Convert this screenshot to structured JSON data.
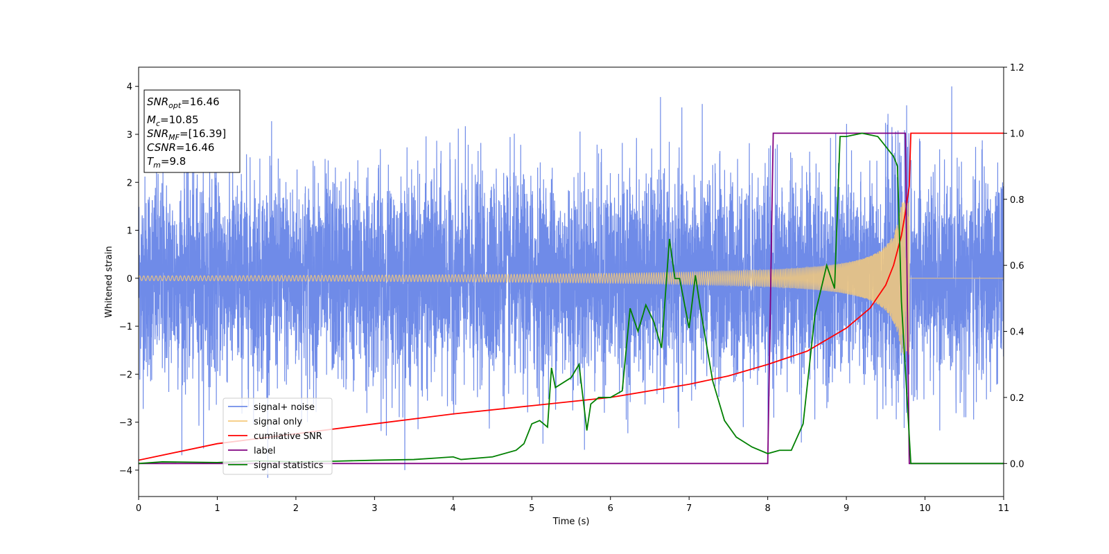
{
  "chart_data": {
    "type": "line",
    "title": "",
    "xlabel": "Time (s)",
    "ylabel": "Whitened strain",
    "ylabel_right": "",
    "xlim": [
      0,
      11
    ],
    "ylim": [
      -4.55,
      4.4
    ],
    "ylim_right": [
      -0.1,
      1.2
    ],
    "x_ticks": [
      "0",
      "1",
      "2",
      "3",
      "4",
      "5",
      "6",
      "7",
      "8",
      "9",
      "10",
      "11"
    ],
    "y_ticks": [
      "−4",
      "−3",
      "−2",
      "−1",
      "0",
      "1",
      "2",
      "3",
      "4"
    ],
    "y_right_ticks": [
      "0.0",
      "0.2",
      "0.4",
      "0.6",
      "0.8",
      "1.0",
      "1.2"
    ],
    "grid": false,
    "legend_position": "lower-left",
    "info_box": {
      "snr_opt": {
        "base": "SNR",
        "sub": "opt",
        "value": "=16.46"
      },
      "mc": {
        "base": "M",
        "sub": "c",
        "value": "=10.85"
      },
      "snr_mf": {
        "base": "SNR",
        "sub": "MF",
        "value": "=[16.39]"
      },
      "csnr": {
        "base": "CSNR",
        "value": "=16.46"
      },
      "tm": {
        "base": "T",
        "sub": "m",
        "value": "=9.8"
      }
    },
    "series": [
      {
        "name": "signal+ noise",
        "axis": "left",
        "color": "#6f8be8",
        "kind": "noise",
        "noise_std": 1.05,
        "noise_peak": 4.0,
        "x_range": [
          0,
          11
        ]
      },
      {
        "name": "signal only",
        "axis": "left",
        "color": "#f5c97a",
        "kind": "chirp",
        "merger_time": 9.8,
        "amp_start": 0.05,
        "amp_peak": 1.6
      },
      {
        "name": "cumilative SNR",
        "axis": "right",
        "color": "#ff0000",
        "x": [
          0,
          1,
          2,
          3,
          4,
          5,
          6,
          7,
          7.5,
          8,
          8.5,
          9,
          9.3,
          9.5,
          9.6,
          9.7,
          9.75,
          9.8,
          9.82,
          11
        ],
        "y": [
          0.01,
          0.06,
          0.09,
          0.12,
          0.15,
          0.175,
          0.2,
          0.24,
          0.265,
          0.3,
          0.34,
          0.41,
          0.47,
          0.54,
          0.6,
          0.69,
          0.76,
          0.84,
          1.0,
          1.0
        ]
      },
      {
        "name": "label",
        "axis": "right",
        "color": "#800080",
        "x": [
          0,
          8.0,
          8.07,
          9.75,
          9.8,
          11
        ],
        "y": [
          0,
          0,
          1,
          1,
          0,
          0
        ]
      },
      {
        "name": "signal statistics",
        "axis": "right",
        "color": "#008000",
        "x": [
          0,
          0.3,
          1,
          1.5,
          2,
          2.5,
          3,
          3.5,
          4,
          4.1,
          4.5,
          4.8,
          4.9,
          5.0,
          5.1,
          5.2,
          5.25,
          5.3,
          5.5,
          5.6,
          5.7,
          5.75,
          5.85,
          6.0,
          6.15,
          6.25,
          6.35,
          6.45,
          6.55,
          6.65,
          6.75,
          6.82,
          6.88,
          7.0,
          7.08,
          7.15,
          7.3,
          7.45,
          7.6,
          7.8,
          8.0,
          8.15,
          8.3,
          8.45,
          8.6,
          8.75,
          8.85,
          8.92,
          9.0,
          9.2,
          9.4,
          9.6,
          9.65,
          9.7,
          9.82,
          11
        ],
        "y": [
          0.0,
          0.005,
          0.003,
          0.008,
          0.005,
          0.007,
          0.01,
          0.012,
          0.02,
          0.012,
          0.02,
          0.04,
          0.06,
          0.12,
          0.13,
          0.11,
          0.29,
          0.23,
          0.26,
          0.3,
          0.1,
          0.18,
          0.2,
          0.2,
          0.22,
          0.47,
          0.4,
          0.48,
          0.43,
          0.35,
          0.68,
          0.56,
          0.56,
          0.41,
          0.57,
          0.46,
          0.25,
          0.13,
          0.08,
          0.05,
          0.03,
          0.04,
          0.04,
          0.12,
          0.45,
          0.6,
          0.53,
          0.99,
          0.99,
          1.0,
          0.99,
          0.93,
          0.9,
          0.49,
          0.0,
          0.0
        ]
      }
    ]
  }
}
